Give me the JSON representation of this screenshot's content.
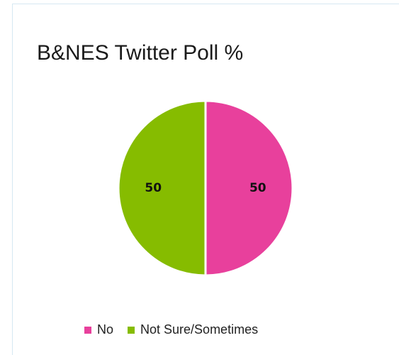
{
  "chart_data": {
    "type": "pie",
    "title": "B&NES Twitter Poll %",
    "categories": [
      "No",
      "Not Sure/Sometimes"
    ],
    "values": [
      50,
      50
    ],
    "data_labels": [
      "50",
      "50"
    ],
    "colors": [
      "#e8409c",
      "#86bc00"
    ],
    "legend_position": "bottom"
  },
  "legend": {
    "items": [
      {
        "label": "No",
        "color": "#e8409c"
      },
      {
        "label": "Not Sure/Sometimes",
        "color": "#86bc00"
      }
    ]
  }
}
